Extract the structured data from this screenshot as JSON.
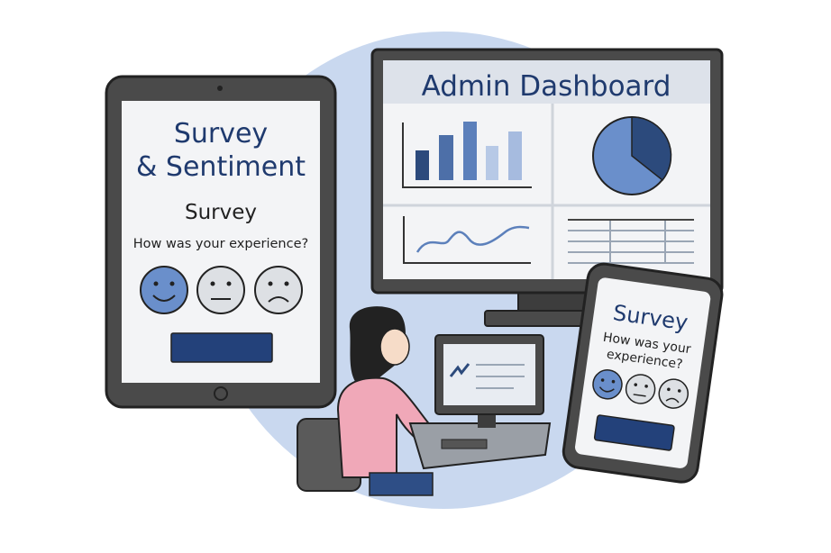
{
  "colors": {
    "navy": "#1f3a6e",
    "accent_blue": "#6a8fcb",
    "background_circle": "#c9d8ef",
    "frame": "#4a4a4a"
  },
  "tablet": {
    "title_line1": "Survey",
    "title_line2": "& Sentiment",
    "subtitle": "Survey",
    "question": "How was your experience?",
    "faces": [
      "happy-face-icon",
      "neutral-face-icon",
      "sad-face-icon"
    ],
    "selected_face": "happy-face-icon"
  },
  "monitor": {
    "title": "Admin Dashboard",
    "widgets": [
      "bar-chart",
      "pie-chart",
      "line-chart",
      "table"
    ]
  },
  "phone": {
    "title": "Survey",
    "question_line1": "How was your",
    "question_line2": "experience?",
    "faces": [
      "happy-face-icon",
      "neutral-face-icon",
      "sad-face-icon"
    ],
    "selected_face": "happy-face-icon"
  }
}
